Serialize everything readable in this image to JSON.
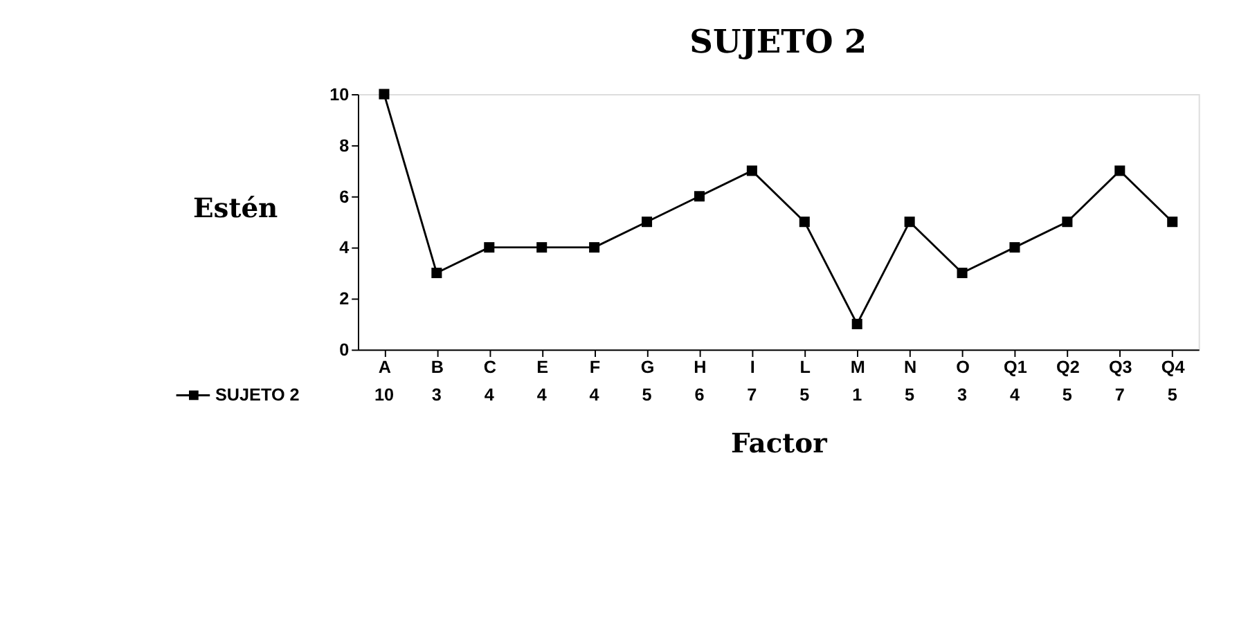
{
  "chart_data": {
    "type": "line",
    "title": "SUJETO 2",
    "xlabel": "Factor",
    "ylabel": "Estén",
    "categories": [
      "A",
      "B",
      "C",
      "E",
      "F",
      "G",
      "H",
      "I",
      "L",
      "M",
      "N",
      "O",
      "Q1",
      "Q2",
      "Q3",
      "Q4"
    ],
    "series": [
      {
        "name": "SUJETO 2",
        "color": "#000000",
        "values": [
          10,
          3,
          4,
          4,
          4,
          5,
          6,
          7,
          5,
          1,
          5,
          3,
          4,
          5,
          7,
          5
        ]
      }
    ],
    "ylim": [
      0,
      10
    ],
    "yticks": [
      0,
      2,
      4,
      6,
      8,
      10
    ],
    "grid": false,
    "marker": "square",
    "line_style": "solid",
    "legend": "bottom left",
    "data_labels": true
  }
}
